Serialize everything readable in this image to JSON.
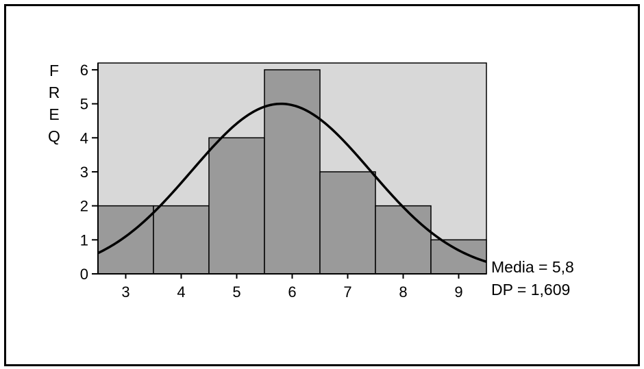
{
  "chart_data": {
    "type": "bar",
    "subtype": "histogram-with-normal-curve",
    "categories": [
      "3",
      "4",
      "5",
      "6",
      "7",
      "8",
      "9"
    ],
    "values": [
      2,
      2,
      4,
      6,
      3,
      2,
      1
    ],
    "ylabel_letters": [
      "F",
      "R",
      "E",
      "Q"
    ],
    "yticks": [
      0,
      1,
      2,
      3,
      4,
      5,
      6
    ],
    "ylim": [
      0,
      6.2
    ],
    "xlim": [
      2.5,
      9.5
    ],
    "normal_curve": {
      "mean": 5.8,
      "sd": 1.609,
      "peak": 5.0
    },
    "stats": {
      "mean_label": "Media = 5,8",
      "sd_label": "DP = 1,609"
    },
    "colors": {
      "plot_bg": "#d8d8d8",
      "bar_fill": "#9a9a9a",
      "line": "#000000"
    },
    "grid": false
  }
}
